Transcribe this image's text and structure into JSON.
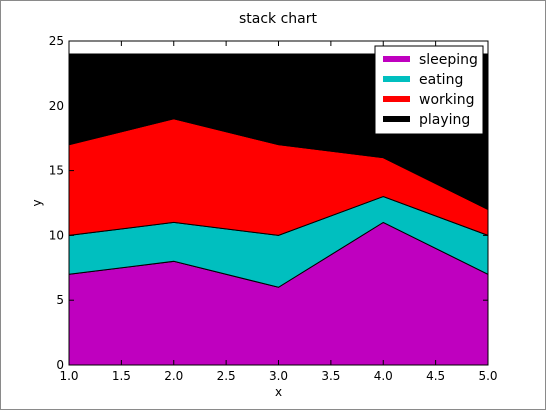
{
  "chart_data": {
    "type": "area",
    "stacked": true,
    "title": "stack chart",
    "xlabel": "x",
    "ylabel": "y",
    "x": [
      1,
      2,
      3,
      4,
      5
    ],
    "xlim": [
      1.0,
      5.0
    ],
    "ylim": [
      0,
      25
    ],
    "xticks": [
      "1.0",
      "1.5",
      "2.0",
      "2.5",
      "3.0",
      "3.5",
      "4.0",
      "4.5",
      "5.0"
    ],
    "yticks": [
      "0",
      "5",
      "10",
      "15",
      "20",
      "25"
    ],
    "grid": false,
    "legend_position": "top-right",
    "series": [
      {
        "name": "sleeping",
        "values": [
          7,
          8,
          6,
          11,
          7
        ],
        "color": "#bf00bf"
      },
      {
        "name": "eating",
        "values": [
          3,
          3,
          4,
          2,
          3
        ],
        "color": "#00bfbf"
      },
      {
        "name": "working",
        "values": [
          7,
          8,
          7,
          3,
          2
        ],
        "color": "#ff0000"
      },
      {
        "name": "playing",
        "values": [
          7,
          5,
          7,
          8,
          12
        ],
        "color": "#000000"
      }
    ]
  }
}
